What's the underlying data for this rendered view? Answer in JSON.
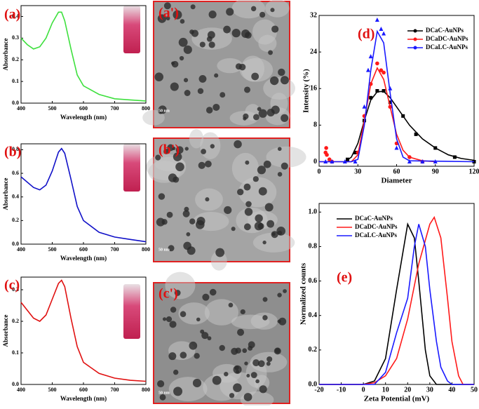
{
  "chart_data": [
    {
      "type": "line",
      "label": "(a)",
      "xlabel": "Wavelength (nm)",
      "ylabel": "Absorbance",
      "xlim": [
        400,
        800
      ],
      "xticks": [
        400,
        500,
        600,
        700,
        800
      ],
      "ylim": [
        0,
        0.45
      ],
      "yticks": [
        {
          "value": 0,
          "label": "0.0"
        },
        0.1,
        0.2,
        0.3,
        0.4
      ],
      "series": [
        {
          "color": "#3ee03e",
          "x": [
            400,
            420,
            440,
            460,
            480,
            500,
            520,
            530,
            540,
            560,
            580,
            600,
            650,
            700,
            750,
            800
          ],
          "values": [
            0.3,
            0.27,
            0.25,
            0.26,
            0.3,
            0.37,
            0.42,
            0.42,
            0.38,
            0.25,
            0.13,
            0.08,
            0.04,
            0.02,
            0.015,
            0.01
          ]
        }
      ]
    },
    {
      "type": "line",
      "label": "(b)",
      "xlabel": "Wavelength (nm)",
      "ylabel": "Absorbance",
      "xlim": [
        400,
        800
      ],
      "xticks": [
        400,
        500,
        600,
        700,
        800
      ],
      "ylim": [
        0,
        0.85
      ],
      "yticks": [
        {
          "value": 0,
          "label": "0.0"
        },
        0.2,
        0.4,
        0.6,
        0.8
      ],
      "series": [
        {
          "color": "#1010c8",
          "x": [
            400,
            440,
            460,
            480,
            500,
            520,
            530,
            540,
            560,
            580,
            600,
            650,
            700,
            750,
            800
          ],
          "values": [
            0.57,
            0.48,
            0.46,
            0.5,
            0.62,
            0.78,
            0.81,
            0.77,
            0.55,
            0.32,
            0.2,
            0.1,
            0.06,
            0.04,
            0.02
          ]
        }
      ]
    },
    {
      "type": "line",
      "label": "(c)",
      "xlabel": "Wavelength (nm)",
      "ylabel": "Absorbance",
      "xlim": [
        400,
        800
      ],
      "xticks": [
        400,
        500,
        600,
        700,
        800
      ],
      "ylim": [
        0,
        0.34
      ],
      "yticks": [
        {
          "value": 0,
          "label": "0.0"
        },
        0.1,
        0.2,
        0.3
      ],
      "series": [
        {
          "color": "#e01010",
          "x": [
            400,
            440,
            460,
            480,
            500,
            520,
            530,
            540,
            560,
            580,
            600,
            650,
            700,
            750,
            800
          ],
          "values": [
            0.26,
            0.21,
            0.2,
            0.22,
            0.27,
            0.32,
            0.33,
            0.31,
            0.21,
            0.12,
            0.07,
            0.035,
            0.02,
            0.013,
            0.01
          ]
        }
      ]
    },
    {
      "type": "scatter",
      "label": "(d)",
      "xlabel": "Diameter",
      "ylabel": "Intensity (%)",
      "xlim": [
        0,
        120
      ],
      "xticks": [
        0,
        30,
        60,
        90,
        120
      ],
      "ylim": [
        -1,
        32
      ],
      "yticks": [
        0,
        8,
        16,
        24,
        32
      ],
      "legend": "upper right",
      "series": [
        {
          "name": "DCaC-AuNPs",
          "color": "#000000",
          "marker": "square",
          "x": [
            22,
            28,
            35,
            40,
            45,
            50,
            55,
            65,
            75,
            90,
            105,
            120
          ],
          "values": [
            0.5,
            2,
            9,
            14,
            15.5,
            15.5,
            13,
            10,
            6,
            3,
            1,
            0
          ],
          "fit": {
            "x": [
              20,
              25,
              30,
              35,
              40,
              45,
              50,
              55,
              60,
              70,
              80,
              90,
              100,
              110,
              120
            ],
            "values": [
              0,
              1,
              4,
              9,
              13.5,
              15.3,
              15.4,
              14,
              12,
              8,
              5,
              3,
              1.5,
              0.7,
              0.3
            ]
          }
        },
        {
          "name": "DCaDC-AuNPs",
          "color": "#ff1a1a",
          "marker": "circle",
          "x": [
            5,
            5.5,
            6,
            8,
            10,
            30,
            35,
            40,
            45,
            48,
            50,
            55,
            60,
            70,
            80
          ],
          "values": [
            2,
            3,
            1.5,
            0.5,
            0,
            2,
            10,
            17,
            21.5,
            20,
            19.5,
            12,
            4,
            1,
            0
          ],
          "fit": {
            "x": [
              0,
              25,
              30,
              35,
              40,
              45,
              50,
              55,
              60,
              65,
              70,
              80,
              90
            ],
            "values": [
              0,
              0,
              1.5,
              9,
              17,
              20.5,
              18,
              12,
              6,
              2.5,
              1,
              0.2,
              0
            ]
          }
        },
        {
          "name": "DCaLC-AuNPs",
          "color": "#1a1aff",
          "marker": "triangle",
          "x": [
            5,
            10,
            20,
            28,
            35,
            38,
            40,
            45,
            48,
            50,
            55,
            60,
            70,
            80,
            90
          ],
          "values": [
            0,
            0,
            0,
            0,
            12,
            20,
            23,
            31,
            29,
            28,
            16,
            3,
            0,
            0,
            0
          ],
          "fit": {
            "x": [
              0,
              25,
              30,
              35,
              40,
              45,
              50,
              55,
              60,
              65,
              70,
              120
            ],
            "values": [
              0,
              0,
              0.5,
              8,
              20,
              28.5,
              26,
              15,
              5,
              1,
              0.2,
              0
            ]
          }
        }
      ]
    },
    {
      "type": "line",
      "label": "(e)",
      "xlabel": "Zeta Potential (mV)",
      "ylabel": "Normalized counts",
      "xlim": [
        -20,
        50
      ],
      "xticks": [
        -20,
        -10,
        0,
        10,
        20,
        30,
        40,
        50
      ],
      "ylim": [
        0,
        1.05
      ],
      "yticks": [
        {
          "value": 0,
          "label": "0.0"
        },
        0.2,
        0.4,
        0.6,
        0.8,
        {
          "value": 1,
          "label": "1.0"
        }
      ],
      "legend": "upper left",
      "series": [
        {
          "name": "DCaC-AuNPs",
          "color": "#000000",
          "x": [
            -20,
            0,
            5,
            10,
            15,
            20,
            23,
            25,
            28,
            30,
            33,
            50
          ],
          "values": [
            0,
            0,
            0.02,
            0.15,
            0.55,
            0.93,
            0.85,
            0.6,
            0.2,
            0.05,
            0,
            0
          ]
        },
        {
          "name": "DCaDC-AuNPs",
          "color": "#ff1a1a",
          "x": [
            -20,
            0,
            5,
            10,
            15,
            20,
            25,
            30,
            32,
            35,
            38,
            40,
            43,
            45,
            50
          ],
          "values": [
            0,
            0,
            0.01,
            0.05,
            0.15,
            0.38,
            0.7,
            0.93,
            0.97,
            0.85,
            0.5,
            0.25,
            0.05,
            0,
            0
          ]
        },
        {
          "name": "DCaLC-AuNPs",
          "color": "#1a1aff",
          "x": [
            -20,
            5,
            10,
            15,
            20,
            23,
            25,
            28,
            30,
            33,
            35,
            38,
            40,
            50
          ],
          "values": [
            0,
            0,
            0.07,
            0.3,
            0.5,
            0.8,
            0.93,
            0.8,
            0.55,
            0.25,
            0.1,
            0.02,
            0,
            0
          ]
        }
      ]
    }
  ],
  "images": [
    {
      "label": "(a')",
      "scale": "50 nm"
    },
    {
      "label": "(b')",
      "scale": "50 nm"
    },
    {
      "label": "(c')",
      "scale": "50 nm"
    }
  ]
}
